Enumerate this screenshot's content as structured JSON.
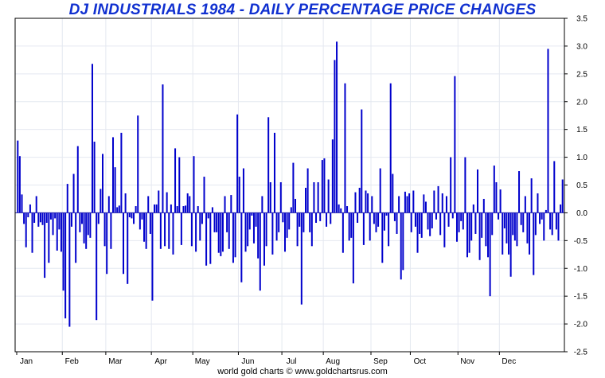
{
  "chart_data": {
    "type": "bar",
    "title": "DJ INDUSTRIALS 1984 - DAILY PERCENTAGE PRICE CHANGES",
    "footer": "world gold charts © www.goldchartsrus.com",
    "xlabel": "",
    "ylabel": "",
    "ylim": [
      -2.5,
      3.5
    ],
    "yticks": [
      "3.5",
      "3.0",
      "2.5",
      "2.0",
      "1.5",
      "1.0",
      "0.5",
      "0.0",
      "-0.5",
      "-1.0",
      "-1.5",
      "-2.0",
      "-2.5"
    ],
    "months": [
      "Jan",
      "Feb",
      "Mar",
      "Apr",
      "May",
      "Jun",
      "Jul",
      "Aug",
      "Sep",
      "Oct",
      "Nov",
      "Dec"
    ],
    "grid": true,
    "bar_color": "#0000cc",
    "series": [
      {
        "values": [
          1.3,
          1.02,
          0.33,
          -0.2,
          -0.62,
          -0.08,
          0.15,
          -0.72,
          -0.18,
          0.3,
          -0.25,
          -0.17,
          -0.22,
          -1.17,
          -0.18,
          -0.9,
          -0.12,
          -0.4,
          -0.1,
          -0.68,
          -0.3,
          -0.7,
          -1.4,
          -1.9,
          0.52,
          -2.05,
          -0.25,
          0.7,
          -0.9,
          1.2,
          -0.35,
          -0.2,
          -0.55,
          -0.65,
          -0.4,
          -0.45,
          2.68,
          1.28,
          -1.93,
          -0.2,
          0.43,
          1.06,
          -0.6,
          -1.1,
          0.3,
          -0.65,
          1.36,
          0.82,
          0.1,
          0.13,
          1.44,
          -1.1,
          0.35,
          -1.28,
          -0.08,
          -0.1,
          -0.2,
          0.12,
          1.75,
          -0.3,
          -0.12,
          -0.52,
          -0.65,
          0.3,
          -0.38,
          -1.58,
          0.15,
          0.15,
          0.4,
          -0.65,
          2.31,
          -0.6,
          0.37,
          -0.65,
          0.15,
          -0.75,
          1.16,
          0.12,
          1.0,
          -0.58,
          0.12,
          0.13,
          0.35,
          0.3,
          -0.6,
          1.02,
          -0.7,
          0.12,
          -0.5,
          -0.2,
          0.65,
          -0.95,
          -0.1,
          -0.92,
          0.1,
          -0.35,
          -0.35,
          -0.72,
          -0.78,
          -0.7,
          0.3,
          -0.35,
          -0.65,
          0.32,
          -0.9,
          -0.8,
          1.77,
          0.65,
          -1.25,
          0.8,
          -0.7,
          -0.6,
          -0.3,
          -0.05,
          -0.55,
          -0.25,
          -0.82,
          -1.4,
          0.3,
          -0.95,
          -0.6,
          1.72,
          0.55,
          -0.75,
          1.44,
          -0.5,
          -0.35,
          0.55,
          -0.17,
          -0.7,
          -0.45,
          -0.3,
          0.1,
          0.9,
          0.25,
          -0.6,
          -0.25,
          -1.65,
          -0.35,
          0.45,
          0.8,
          -0.35,
          -0.6,
          0.55,
          -0.18,
          0.55,
          -0.15,
          0.95,
          0.98,
          -0.25,
          0.6,
          -0.2,
          1.32,
          2.75,
          3.08,
          0.15,
          0.08,
          -0.72,
          2.33,
          0.12,
          -0.5,
          -0.45,
          -1.27,
          0.37,
          -0.18,
          0.45,
          1.86,
          -0.58,
          0.4,
          0.35,
          -0.5,
          0.3,
          -0.2,
          -0.35,
          -0.25,
          0.8,
          -0.9,
          -0.32,
          -0.05,
          -0.6,
          2.33,
          0.7,
          -0.15,
          -0.38,
          0.3,
          -1.2,
          -1.03,
          0.38,
          0.3,
          0.35,
          -0.35,
          0.4,
          -0.25,
          -0.72,
          -0.38,
          -0.45,
          0.33,
          0.2,
          -0.3,
          -0.42,
          -0.28,
          0.4,
          -0.12,
          0.48,
          -0.4,
          0.35,
          -0.62,
          0.3,
          -0.25,
          1.0,
          -0.1,
          2.46,
          -0.52,
          -0.35,
          -0.15,
          -0.3,
          1.0,
          -0.8,
          -0.72,
          -0.5,
          0.15,
          -0.38,
          0.78,
          -0.85,
          -0.45,
          0.25,
          -0.6,
          -0.8,
          -1.5,
          -0.4,
          0.85,
          0.55,
          -0.12,
          0.42,
          -0.75,
          -0.28,
          -0.55,
          -0.75,
          -1.15,
          -0.4,
          -0.5,
          -0.6,
          0.75,
          -0.22,
          -0.35,
          0.3,
          -0.55,
          -0.75,
          0.62,
          -1.12,
          -0.4,
          0.35,
          -0.2,
          -0.12,
          -0.5,
          0.05,
          2.95,
          -0.3,
          -0.4,
          0.93,
          -0.3,
          -0.5,
          0.15,
          0.6
        ]
      }
    ]
  }
}
